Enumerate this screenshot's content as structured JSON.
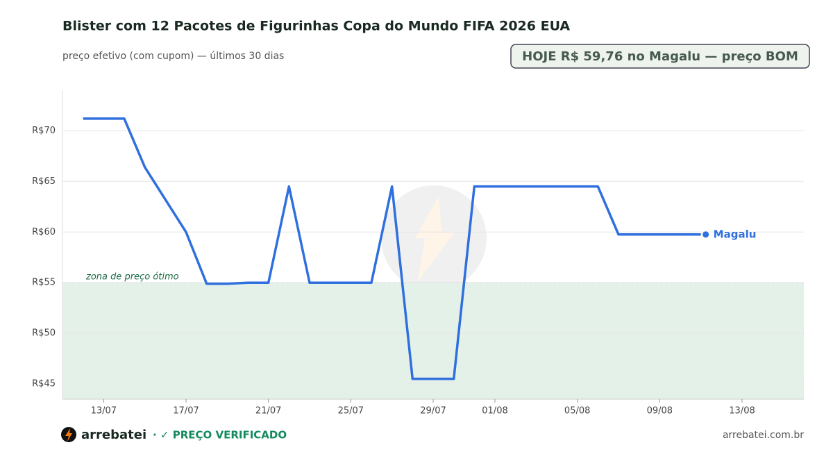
{
  "chart_data": {
    "type": "line",
    "title": "Blister com 12 Pacotes de Figurinhas Copa do Mundo FIFA 2026 EUA",
    "subtitle": "preço efetivo (com cupom) — últimos 30 dias",
    "badge": "HOJE R$ 59,76 no Magalu — preço BOM",
    "zone_label": "zona de preço ótimo",
    "zone_threshold": 55,
    "x": [
      "12/07",
      "13/07",
      "14/07",
      "15/07",
      "16/07",
      "17/07",
      "18/07",
      "19/07",
      "20/07",
      "21/07",
      "22/07",
      "23/07",
      "24/07",
      "25/07",
      "26/07",
      "27/07",
      "28/07",
      "29/07",
      "30/07",
      "31/07",
      "01/08",
      "02/08",
      "03/08",
      "04/08",
      "05/08",
      "06/08",
      "07/08",
      "08/08",
      "09/08",
      "10/08",
      "11/08"
    ],
    "series": [
      {
        "name": "Magalu",
        "color": "#2f6fde",
        "values": [
          71.2,
          71.2,
          71.2,
          66.4,
          63.2,
          60.0,
          54.9,
          54.9,
          55.0,
          55.0,
          64.5,
          55.0,
          55.0,
          55.0,
          55.0,
          64.5,
          45.5,
          45.5,
          45.5,
          64.5,
          64.5,
          64.5,
          64.5,
          64.5,
          64.5,
          64.5,
          59.76,
          59.76,
          59.76,
          59.76,
          59.76
        ]
      }
    ],
    "xlim": [
      "11/07",
      "16/08"
    ],
    "xticks": [
      "13/07",
      "17/07",
      "21/07",
      "25/07",
      "29/07",
      "01/08",
      "05/08",
      "09/08",
      "13/08"
    ],
    "ylim": [
      43.5,
      74
    ],
    "yticks": [
      {
        "value": 45,
        "label": "R$45"
      },
      {
        "value": 50,
        "label": "R$50"
      },
      {
        "value": 55,
        "label": "R$55"
      },
      {
        "value": 60,
        "label": "R$60"
      },
      {
        "value": 65,
        "label": "R$65"
      },
      {
        "value": 70,
        "label": "R$70"
      }
    ],
    "grid": true,
    "footer": {
      "brand": "arrebatei",
      "verified": "· ✓ PREÇO VERIFICADO",
      "site": "arrebatei.com.br"
    }
  }
}
